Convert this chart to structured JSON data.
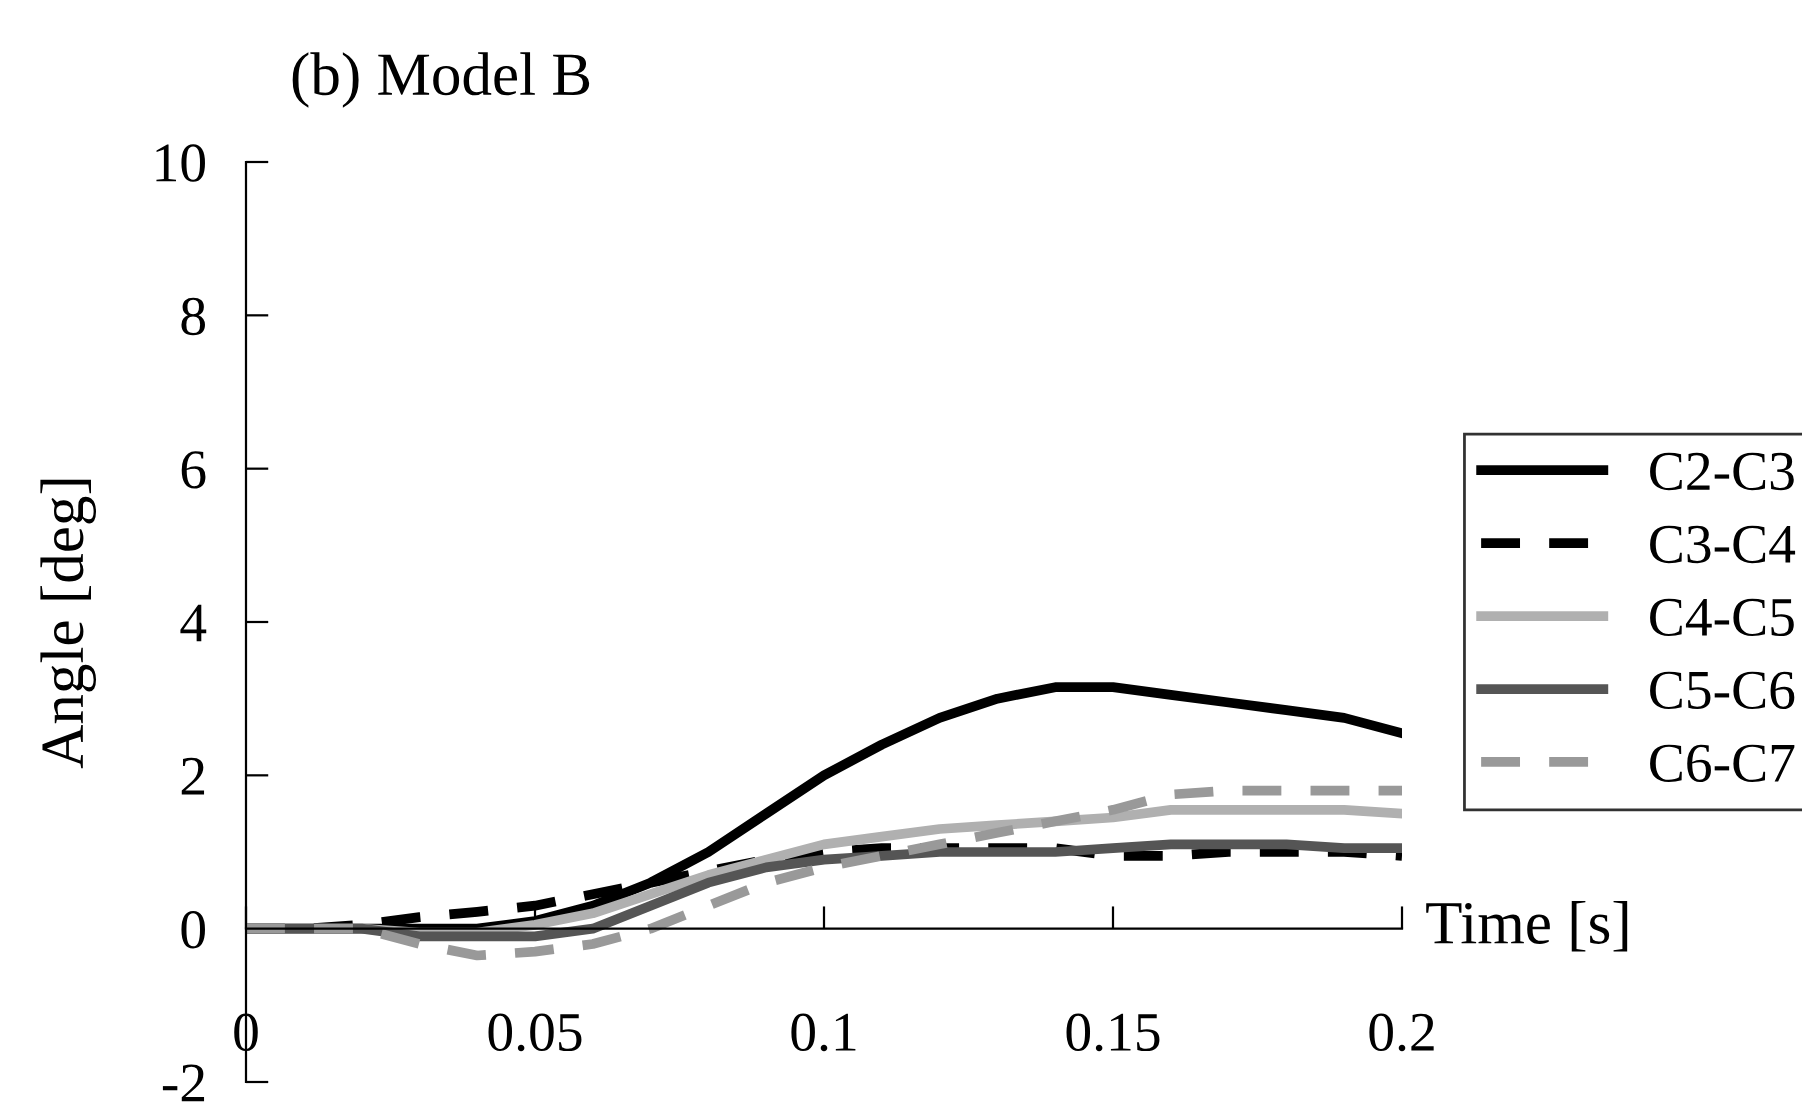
{
  "chart_data": {
    "type": "line",
    "title": "(b) Model B",
    "xlabel": "Time [s]",
    "ylabel": "Angle [deg]",
    "x": [
      0,
      0.01,
      0.02,
      0.03,
      0.04,
      0.05,
      0.06,
      0.07,
      0.08,
      0.09,
      0.1,
      0.11,
      0.12,
      0.13,
      0.14,
      0.15,
      0.16,
      0.17,
      0.18,
      0.19,
      0.2
    ],
    "series": [
      {
        "name": "C2-C3",
        "color": "#000000",
        "line_style": "solid",
        "values": [
          0,
          0,
          0,
          0,
          0,
          0.1,
          0.3,
          0.6,
          1.0,
          1.5,
          2.0,
          2.4,
          2.75,
          3.0,
          3.15,
          3.15,
          3.05,
          2.95,
          2.85,
          2.75,
          2.55
        ]
      },
      {
        "name": "C3-C4",
        "color": "#000000",
        "line_style": "dashed",
        "values": [
          0,
          0,
          0.05,
          0.15,
          0.22,
          0.3,
          0.45,
          0.6,
          0.75,
          0.9,
          1.0,
          1.05,
          1.05,
          1.05,
          1.05,
          0.95,
          0.95,
          1.0,
          1.0,
          1.0,
          0.95
        ]
      },
      {
        "name": "C4-C5",
        "color": "#b0b0b0",
        "line_style": "solid",
        "values": [
          0,
          0,
          0,
          -0.05,
          -0.05,
          0.05,
          0.2,
          0.45,
          0.7,
          0.9,
          1.1,
          1.2,
          1.3,
          1.35,
          1.4,
          1.45,
          1.55,
          1.55,
          1.55,
          1.55,
          1.5
        ]
      },
      {
        "name": "C5-C6",
        "color": "#555555",
        "line_style": "solid",
        "values": [
          0,
          0,
          0,
          -0.1,
          -0.1,
          -0.1,
          0,
          0.3,
          0.6,
          0.8,
          0.9,
          0.95,
          1.0,
          1.0,
          1.0,
          1.05,
          1.1,
          1.1,
          1.1,
          1.05,
          1.05
        ]
      },
      {
        "name": "C6-C7",
        "color": "#999999",
        "line_style": "dashed",
        "values": [
          0,
          0,
          0,
          -0.2,
          -0.35,
          -0.3,
          -0.2,
          0,
          0.3,
          0.6,
          0.8,
          0.95,
          1.1,
          1.25,
          1.4,
          1.55,
          1.75,
          1.8,
          1.8,
          1.8,
          1.8
        ]
      }
    ],
    "xlim": [
      0,
      0.2
    ],
    "xticks": [
      0,
      0.05,
      0.1,
      0.15,
      0.2
    ],
    "ylim": [
      -2,
      10
    ],
    "yticks": [
      -2,
      0,
      2,
      4,
      6,
      8,
      10
    ],
    "grid": false,
    "legend": "right",
    "marker": "none"
  }
}
